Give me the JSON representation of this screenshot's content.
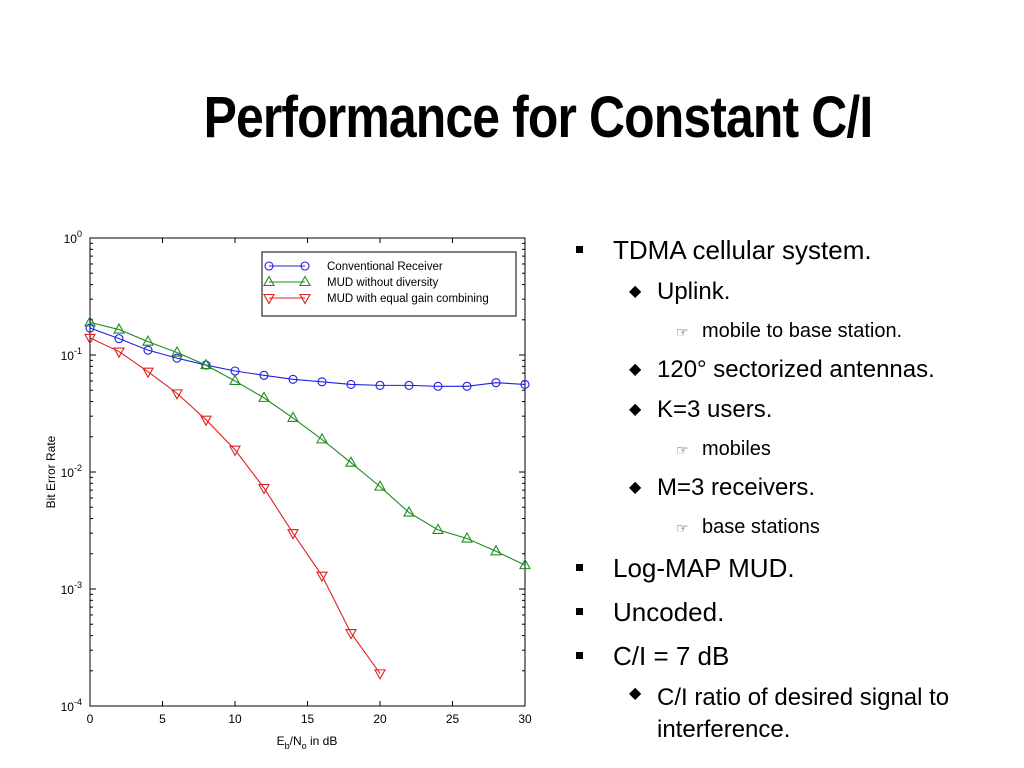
{
  "slide": {
    "title": "Performance for Constant C/I"
  },
  "bullets": [
    {
      "level": 1,
      "marker": "square-bullet",
      "text": "TDMA cellular system."
    },
    {
      "level": 2,
      "marker": "diamond-bullet",
      "text": "Uplink."
    },
    {
      "level": 3,
      "marker": "pointing-hand-bullet",
      "text": "mobile to base station."
    },
    {
      "level": 2,
      "marker": "diamond-bullet",
      "text": "120° sectorized antennas."
    },
    {
      "level": 2,
      "marker": "diamond-bullet",
      "text": "K=3 users."
    },
    {
      "level": 3,
      "marker": "pointing-hand-bullet",
      "text": "mobiles"
    },
    {
      "level": 2,
      "marker": "diamond-bullet",
      "text": "M=3 receivers."
    },
    {
      "level": 3,
      "marker": "pointing-hand-bullet",
      "text": "base stations"
    },
    {
      "level": 1,
      "marker": "square-bullet",
      "text": "Log-MAP MUD."
    },
    {
      "level": 1,
      "marker": "square-bullet",
      "text": "Uncoded."
    },
    {
      "level": 1,
      "marker": "square-bullet",
      "text": "C/I = 7 dB"
    },
    {
      "level": 2,
      "marker": "diamond-bullet",
      "text": "C/I ratio of desired signal to interference."
    }
  ],
  "chart_data": {
    "type": "line",
    "title": "",
    "xlabel": "Eb/No in dB",
    "ylabel": "Bit Error Rate",
    "xlim": [
      0,
      30
    ],
    "ylim": [
      0.0001,
      1
    ],
    "yscale": "log",
    "grid": false,
    "legend_position": "top-right",
    "x_ticks": [
      "0",
      "5",
      "10",
      "15",
      "20",
      "25",
      "30"
    ],
    "y_ticks": [
      {
        "value": 1,
        "base": "10",
        "exp": "0"
      },
      {
        "value": 0.1,
        "base": "10",
        "exp": "-1"
      },
      {
        "value": 0.01,
        "base": "10",
        "exp": "-2"
      },
      {
        "value": 0.001,
        "base": "10",
        "exp": "-3"
      },
      {
        "value": 0.0001,
        "base": "10",
        "exp": "-4"
      }
    ],
    "series": [
      {
        "name": "Conventional Receiver",
        "marker": "circle",
        "color": "#1f1fe0",
        "x": [
          0,
          2,
          4,
          6,
          8,
          10,
          12,
          14,
          16,
          18,
          20,
          22,
          24,
          26,
          28,
          30
        ],
        "y": [
          0.17,
          0.138,
          0.11,
          0.094,
          0.082,
          0.073,
          0.067,
          0.062,
          0.059,
          0.056,
          0.055,
          0.055,
          0.054,
          0.054,
          0.058,
          0.056
        ]
      },
      {
        "name": "MUD without diversity",
        "marker": "triangle-up",
        "color": "#1e8c1e",
        "x": [
          0,
          2,
          4,
          6,
          8,
          10,
          12,
          14,
          16,
          18,
          20,
          22,
          24,
          26,
          28,
          30
        ],
        "y": [
          0.19,
          0.165,
          0.13,
          0.105,
          0.082,
          0.06,
          0.043,
          0.029,
          0.019,
          0.012,
          0.0075,
          0.0045,
          0.0032,
          0.0027,
          0.0021,
          0.0016
        ]
      },
      {
        "name": "MUD with equal gain combining",
        "marker": "triangle-down",
        "color": "#e02020",
        "x": [
          0,
          2,
          4,
          6,
          8,
          10,
          12,
          14,
          16,
          18,
          20
        ],
        "y": [
          0.14,
          0.107,
          0.072,
          0.047,
          0.028,
          0.0155,
          0.0073,
          0.003,
          0.0013,
          0.00042,
          0.00019
        ]
      }
    ]
  }
}
